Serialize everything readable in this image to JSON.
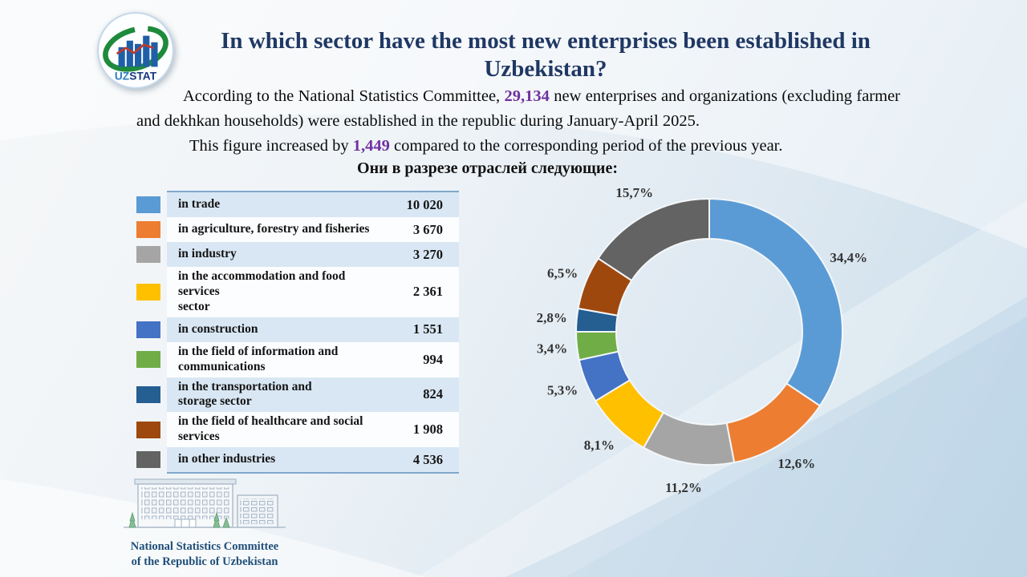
{
  "logo": {
    "text_uz": "UZ",
    "text_stat": "STAT"
  },
  "title": "In which sector have the most new enterprises been established in Uzbekistan?",
  "intro": {
    "p1_before": "According to the National Statistics Committee, ",
    "p1_number": "29,134",
    "p1_after": " new enterprises and organizations (excluding farmer and dekhkan households) were established in the republic during January-April 2025.",
    "p2_before": "This figure increased by ",
    "p2_number": "1,449",
    "p2_after": " compared to the corresponding period of the previous year."
  },
  "subtitle": "Они в разрезе отраслей следующие:",
  "accent_colors": {
    "number_highlight": "#7030A0",
    "title_navy": "#203864",
    "table_border_blue": "#7FA8CC",
    "row_band_blue": "#D9E7F4"
  },
  "footer": {
    "line1": "National  Statistics Committee",
    "line2": "of the Republic  of Uzbekistan"
  },
  "chart_data": {
    "type": "pie",
    "subtype": "donut",
    "title": "Они в разрезе отраслей следующие:",
    "start_angle": "top",
    "direction": "clockwise",
    "inner_radius_ratio": 0.7,
    "legend_position": "left-table",
    "categories": [
      "in trade",
      "in agriculture, forestry and fisheries",
      "in industry",
      "in the accommodation and food services\nsector",
      "in construction",
      "in the field of information and\ncommunications",
      "in the transportation and\nstorage sector",
      "in the field of healthcare and social\nservices",
      "in other industries"
    ],
    "values": [
      10020,
      3670,
      3270,
      2361,
      1551,
      994,
      824,
      1908,
      4536
    ],
    "value_labels": [
      "10 020",
      "3 670",
      "3 270",
      "2 361",
      "1 551",
      "994",
      "824",
      "1 908",
      "4 536"
    ],
    "percents": [
      34.4,
      12.6,
      11.2,
      8.1,
      5.3,
      3.4,
      2.8,
      6.5,
      15.7
    ],
    "percent_labels": [
      "34,4%",
      "12,6%",
      "11,2%",
      "8,1%",
      "5,3%",
      "3,4%",
      "2,8%",
      "6,5%",
      "15,7%"
    ],
    "colors": [
      "#5B9BD5",
      "#ED7D31",
      "#A5A5A5",
      "#FFC000",
      "#4472C4",
      "#70AD47",
      "#255E91",
      "#9E480E",
      "#636363"
    ]
  }
}
